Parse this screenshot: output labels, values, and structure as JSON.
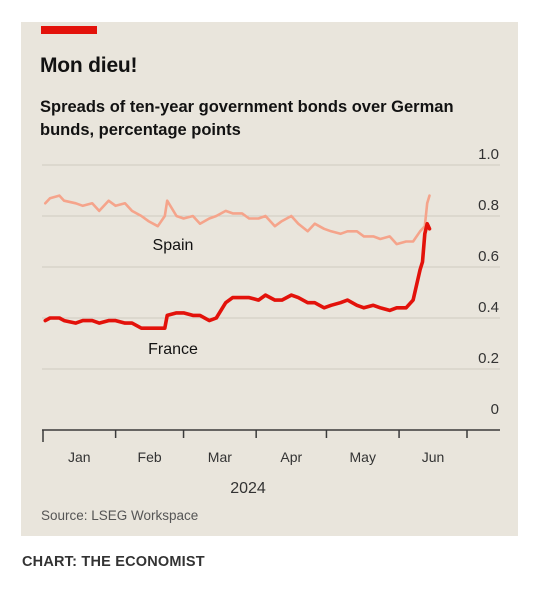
{
  "header": {
    "title": "Mon dieu!",
    "subtitle": "Spreads of ten-year government bonds over German bunds, percentage points"
  },
  "footer": {
    "source": "Source: LSEG Workspace",
    "credit": "CHART: THE ECONOMIST"
  },
  "colors": {
    "panel": "#e9e5dc",
    "accent": "#e3120b",
    "france": "#e3120b",
    "spain": "#f5a48b",
    "grid": "#cfcac0"
  },
  "chart_data": {
    "type": "line",
    "title": "Spreads of ten-year government bonds over German bunds, percentage points",
    "xlabel": "2024",
    "ylabel": "",
    "ylim": [
      0,
      1.0
    ],
    "yticks": [
      "1.0",
      "0.8",
      "0.6",
      "0.4",
      "0.2",
      "0"
    ],
    "months": [
      "Jan",
      "Feb",
      "Mar",
      "Apr",
      "May",
      "Jun"
    ],
    "year": "2024",
    "grid": true,
    "legend": "inline",
    "series": [
      {
        "name": "Spain",
        "color": "#f5a48b",
        "points": [
          [
            "2024-01-02",
            0.85
          ],
          [
            "2024-01-04",
            0.87
          ],
          [
            "2024-01-08",
            0.88
          ],
          [
            "2024-01-10",
            0.86
          ],
          [
            "2024-01-15",
            0.85
          ],
          [
            "2024-01-18",
            0.84
          ],
          [
            "2024-01-22",
            0.85
          ],
          [
            "2024-01-25",
            0.82
          ],
          [
            "2024-01-29",
            0.86
          ],
          [
            "2024-02-01",
            0.84
          ],
          [
            "2024-02-05",
            0.85
          ],
          [
            "2024-02-08",
            0.82
          ],
          [
            "2024-02-12",
            0.8
          ],
          [
            "2024-02-15",
            0.78
          ],
          [
            "2024-02-19",
            0.76
          ],
          [
            "2024-02-22",
            0.8
          ],
          [
            "2024-02-23",
            0.86
          ],
          [
            "2024-02-27",
            0.8
          ],
          [
            "2024-03-01",
            0.79
          ],
          [
            "2024-03-05",
            0.8
          ],
          [
            "2024-03-08",
            0.77
          ],
          [
            "2024-03-12",
            0.79
          ],
          [
            "2024-03-15",
            0.8
          ],
          [
            "2024-03-19",
            0.82
          ],
          [
            "2024-03-22",
            0.81
          ],
          [
            "2024-03-26",
            0.81
          ],
          [
            "2024-03-29",
            0.79
          ],
          [
            "2024-04-02",
            0.79
          ],
          [
            "2024-04-05",
            0.8
          ],
          [
            "2024-04-09",
            0.76
          ],
          [
            "2024-04-12",
            0.78
          ],
          [
            "2024-04-16",
            0.8
          ],
          [
            "2024-04-19",
            0.77
          ],
          [
            "2024-04-23",
            0.74
          ],
          [
            "2024-04-26",
            0.77
          ],
          [
            "2024-04-30",
            0.75
          ],
          [
            "2024-05-03",
            0.74
          ],
          [
            "2024-05-07",
            0.73
          ],
          [
            "2024-05-10",
            0.74
          ],
          [
            "2024-05-14",
            0.74
          ],
          [
            "2024-05-17",
            0.72
          ],
          [
            "2024-05-21",
            0.72
          ],
          [
            "2024-05-24",
            0.71
          ],
          [
            "2024-05-28",
            0.72
          ],
          [
            "2024-05-31",
            0.69
          ],
          [
            "2024-06-04",
            0.7
          ],
          [
            "2024-06-07",
            0.7
          ],
          [
            "2024-06-10",
            0.74
          ],
          [
            "2024-06-12",
            0.76
          ],
          [
            "2024-06-13",
            0.85
          ],
          [
            "2024-06-14",
            0.88
          ]
        ]
      },
      {
        "name": "France",
        "color": "#e3120b",
        "points": [
          [
            "2024-01-02",
            0.39
          ],
          [
            "2024-01-04",
            0.4
          ],
          [
            "2024-01-08",
            0.4
          ],
          [
            "2024-01-10",
            0.39
          ],
          [
            "2024-01-15",
            0.38
          ],
          [
            "2024-01-18",
            0.39
          ],
          [
            "2024-01-22",
            0.39
          ],
          [
            "2024-01-25",
            0.38
          ],
          [
            "2024-01-29",
            0.39
          ],
          [
            "2024-02-01",
            0.39
          ],
          [
            "2024-02-05",
            0.38
          ],
          [
            "2024-02-08",
            0.38
          ],
          [
            "2024-02-12",
            0.36
          ],
          [
            "2024-02-15",
            0.36
          ],
          [
            "2024-02-19",
            0.36
          ],
          [
            "2024-02-22",
            0.36
          ],
          [
            "2024-02-23",
            0.41
          ],
          [
            "2024-02-27",
            0.42
          ],
          [
            "2024-03-01",
            0.42
          ],
          [
            "2024-03-05",
            0.41
          ],
          [
            "2024-03-08",
            0.41
          ],
          [
            "2024-03-12",
            0.39
          ],
          [
            "2024-03-15",
            0.4
          ],
          [
            "2024-03-19",
            0.46
          ],
          [
            "2024-03-22",
            0.48
          ],
          [
            "2024-03-26",
            0.48
          ],
          [
            "2024-03-29",
            0.48
          ],
          [
            "2024-04-02",
            0.47
          ],
          [
            "2024-04-05",
            0.49
          ],
          [
            "2024-04-09",
            0.47
          ],
          [
            "2024-04-12",
            0.47
          ],
          [
            "2024-04-16",
            0.49
          ],
          [
            "2024-04-19",
            0.48
          ],
          [
            "2024-04-23",
            0.46
          ],
          [
            "2024-04-26",
            0.46
          ],
          [
            "2024-04-30",
            0.44
          ],
          [
            "2024-05-03",
            0.45
          ],
          [
            "2024-05-07",
            0.46
          ],
          [
            "2024-05-10",
            0.47
          ],
          [
            "2024-05-14",
            0.45
          ],
          [
            "2024-05-17",
            0.44
          ],
          [
            "2024-05-21",
            0.45
          ],
          [
            "2024-05-24",
            0.44
          ],
          [
            "2024-05-28",
            0.43
          ],
          [
            "2024-05-31",
            0.44
          ],
          [
            "2024-06-04",
            0.44
          ],
          [
            "2024-06-07",
            0.47
          ],
          [
            "2024-06-10",
            0.59
          ],
          [
            "2024-06-11",
            0.62
          ],
          [
            "2024-06-12",
            0.73
          ],
          [
            "2024-06-13",
            0.77
          ],
          [
            "2024-06-14",
            0.75
          ]
        ]
      }
    ]
  }
}
